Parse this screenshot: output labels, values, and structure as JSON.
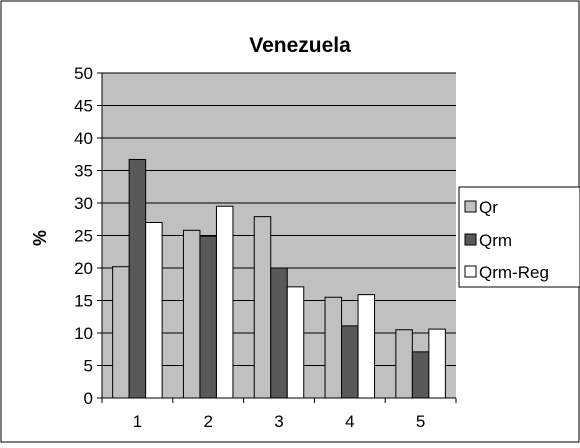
{
  "chart_data": {
    "type": "bar",
    "title": "Venezuela",
    "xlabel": "",
    "ylabel": "%",
    "categories": [
      "1",
      "2",
      "3",
      "4",
      "5"
    ],
    "ylim": [
      0,
      50
    ],
    "yticks": [
      0,
      5,
      10,
      15,
      20,
      25,
      30,
      35,
      40,
      45,
      50
    ],
    "grid": true,
    "legend_position": "right",
    "plot_background": "#c0c0c0",
    "series": [
      {
        "name": "Qr",
        "color": "#c0c0c0",
        "values": [
          20.2,
          25.8,
          27.9,
          15.5,
          10.5
        ]
      },
      {
        "name": "Qrm",
        "color": "#595959",
        "values": [
          36.7,
          24.9,
          20.0,
          11.1,
          7.1
        ]
      },
      {
        "name": "Qrm-Reg",
        "color": "#ffffff",
        "values": [
          27.0,
          29.5,
          17.1,
          15.9,
          10.6
        ]
      }
    ]
  }
}
